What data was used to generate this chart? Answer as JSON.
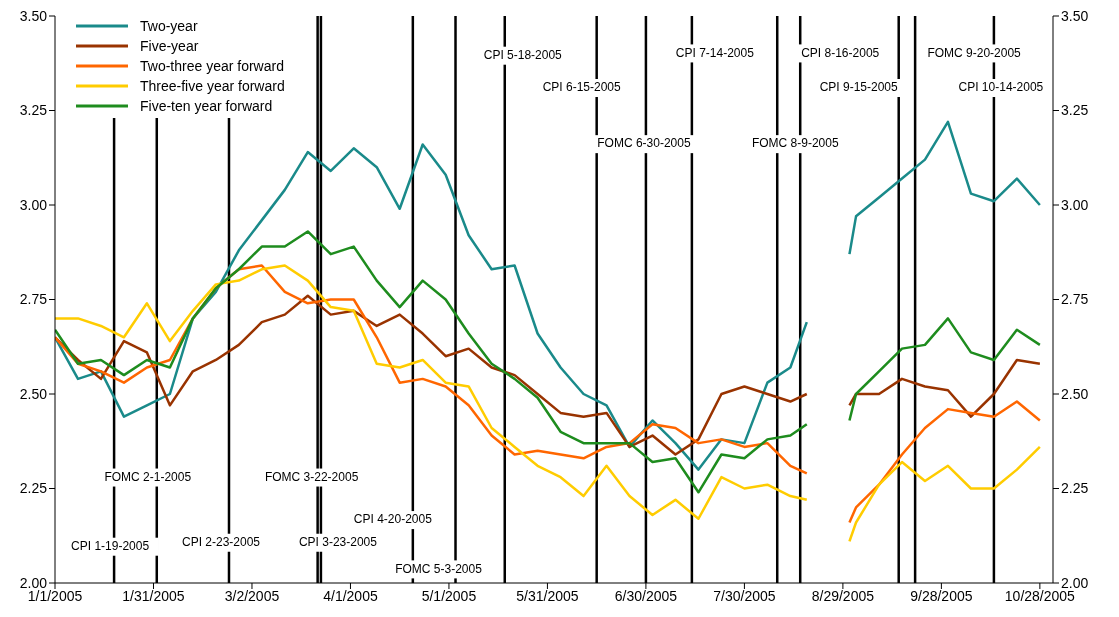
{
  "chart_data": {
    "type": "line",
    "legend": "top left",
    "x": [
      "2005-01-01",
      "2005-01-08",
      "2005-01-15",
      "2005-01-22",
      "2005-01-29",
      "2005-02-05",
      "2005-02-12",
      "2005-02-19",
      "2005-02-26",
      "2005-03-05",
      "2005-03-12",
      "2005-03-19",
      "2005-03-26",
      "2005-04-02",
      "2005-04-09",
      "2005-04-16",
      "2005-04-23",
      "2005-04-30",
      "2005-05-07",
      "2005-05-14",
      "2005-05-21",
      "2005-05-28",
      "2005-06-04",
      "2005-06-11",
      "2005-06-18",
      "2005-06-25",
      "2005-07-02",
      "2005-07-09",
      "2005-07-16",
      "2005-07-23",
      "2005-07-30",
      "2005-08-06",
      "2005-08-13",
      "2005-08-18",
      "2005-08-25",
      "2005-08-31",
      "2005-09-02",
      "2005-09-09",
      "2005-09-16",
      "2005-09-23",
      "2005-09-30",
      "2005-10-07",
      "2005-10-14",
      "2005-10-21",
      "2005-10-28"
    ],
    "series": [
      {
        "name": "Two-year",
        "color": "#1a8a8a",
        "values": [
          2.65,
          2.54,
          2.56,
          2.44,
          2.47,
          2.5,
          2.7,
          2.77,
          2.88,
          2.96,
          3.04,
          3.14,
          3.09,
          3.15,
          3.1,
          2.99,
          3.16,
          3.08,
          2.92,
          2.83,
          2.84,
          2.66,
          2.57,
          2.5,
          2.47,
          2.36,
          2.43,
          2.37,
          2.3,
          2.38,
          2.37,
          2.53,
          2.57,
          2.69,
          null,
          2.87,
          2.97,
          3.02,
          3.07,
          3.12,
          3.22,
          3.03,
          3.01,
          3.07,
          3.0
        ]
      },
      {
        "name": "Five-year",
        "color": "#993300",
        "values": [
          2.65,
          2.59,
          2.54,
          2.64,
          2.61,
          2.47,
          2.56,
          2.59,
          2.63,
          2.69,
          2.71,
          2.76,
          2.71,
          2.72,
          2.68,
          2.71,
          2.66,
          2.6,
          2.62,
          2.57,
          2.55,
          2.5,
          2.45,
          2.44,
          2.45,
          2.36,
          2.39,
          2.34,
          2.38,
          2.5,
          2.52,
          2.5,
          2.48,
          2.5,
          null,
          2.47,
          2.5,
          2.5,
          2.54,
          2.52,
          2.51,
          2.44,
          2.5,
          2.59,
          2.58
        ]
      },
      {
        "name": "Two-three year forward",
        "color": "#ff6600",
        "values": [
          2.65,
          2.58,
          2.56,
          2.53,
          2.57,
          2.59,
          2.7,
          2.78,
          2.83,
          2.84,
          2.77,
          2.74,
          2.75,
          2.75,
          2.65,
          2.53,
          2.54,
          2.52,
          2.47,
          2.39,
          2.34,
          2.35,
          2.34,
          2.33,
          2.36,
          2.37,
          2.42,
          2.41,
          2.37,
          2.38,
          2.36,
          2.37,
          2.31,
          2.29,
          null,
          2.16,
          2.2,
          2.26,
          2.34,
          2.41,
          2.46,
          2.45,
          2.44,
          2.48,
          2.43
        ]
      },
      {
        "name": "Three-five year forward",
        "color": "#ffcc00",
        "values": [
          2.7,
          2.7,
          2.68,
          2.65,
          2.74,
          2.64,
          2.72,
          2.79,
          2.8,
          2.83,
          2.84,
          2.8,
          2.73,
          2.72,
          2.58,
          2.57,
          2.59,
          2.53,
          2.52,
          2.41,
          2.36,
          2.31,
          2.28,
          2.23,
          2.31,
          2.23,
          2.18,
          2.22,
          2.17,
          2.28,
          2.25,
          2.26,
          2.23,
          2.22,
          null,
          2.11,
          2.16,
          2.26,
          2.32,
          2.27,
          2.31,
          2.25,
          2.25,
          2.3,
          2.36
        ]
      },
      {
        "name": "Five-ten year forward",
        "color": "#1e8c1e",
        "values": [
          2.67,
          2.58,
          2.59,
          2.55,
          2.59,
          2.57,
          2.7,
          2.78,
          2.83,
          2.89,
          2.89,
          2.93,
          2.87,
          2.89,
          2.8,
          2.73,
          2.8,
          2.75,
          2.66,
          2.58,
          2.54,
          2.49,
          2.4,
          2.37,
          2.37,
          2.37,
          2.32,
          2.33,
          2.24,
          2.34,
          2.33,
          2.38,
          2.39,
          2.42,
          null,
          2.43,
          2.5,
          2.56,
          2.62,
          2.63,
          2.7,
          2.61,
          2.59,
          2.67,
          2.63
        ]
      }
    ],
    "xlim": [
      "2005-01-01",
      "2005-11-01"
    ],
    "xticks": [
      {
        "value": "2005-01-01",
        "label": "1/1/2005"
      },
      {
        "value": "2005-01-31",
        "label": "1/31/2005"
      },
      {
        "value": "2005-03-02",
        "label": "3/2/2005"
      },
      {
        "value": "2005-04-01",
        "label": "4/1/2005"
      },
      {
        "value": "2005-05-01",
        "label": "5/1/2005"
      },
      {
        "value": "2005-05-31",
        "label": "5/31/2005"
      },
      {
        "value": "2005-06-30",
        "label": "6/30/2005"
      },
      {
        "value": "2005-07-30",
        "label": "7/30/2005"
      },
      {
        "value": "2005-08-29",
        "label": "8/29/2005"
      },
      {
        "value": "2005-09-28",
        "label": "9/28/2005"
      },
      {
        "value": "2005-10-28",
        "label": "10/28/2005"
      }
    ],
    "ylim": [
      2,
      3.5
    ],
    "yticks": [
      {
        "value": 2,
        "label": "2.00"
      },
      {
        "value": 2.25,
        "label": "2.25"
      },
      {
        "value": 2.5,
        "label": "2.50"
      },
      {
        "value": 2.75,
        "label": "2.75"
      },
      {
        "value": 3,
        "label": "3.00"
      },
      {
        "value": 3.25,
        "label": "3.25"
      },
      {
        "value": 3.5,
        "label": "3.50"
      }
    ],
    "y2lim": [
      2,
      3.5
    ],
    "y2ticks": [
      {
        "value": 2,
        "label": "2.00"
      },
      {
        "value": 2.25,
        "label": "2.25"
      },
      {
        "value": 2.5,
        "label": "2.50"
      },
      {
        "value": 2.75,
        "label": "2.75"
      },
      {
        "value": 3,
        "label": "3.00"
      },
      {
        "value": 3.25,
        "label": "3.25"
      },
      {
        "value": 3.5,
        "label": "3.50"
      }
    ],
    "ref_lines": [
      {
        "axis": "x",
        "value": "2005-01-19",
        "label": "CPI 1-19-2005",
        "color": "#000000"
      },
      {
        "axis": "x",
        "value": "2005-02-01",
        "label": "FOMC 2-1-2005",
        "color": "#000000"
      },
      {
        "axis": "x",
        "value": "2005-02-23",
        "label": "CPI 2-23-2005",
        "color": "#000000"
      },
      {
        "axis": "x",
        "value": "2005-03-22",
        "label": "FOMC 3-22-2005",
        "color": "#000000"
      },
      {
        "axis": "x",
        "value": "2005-03-23",
        "label": "CPI 3-23-2005",
        "color": "#000000"
      },
      {
        "axis": "x",
        "value": "2005-04-20",
        "label": "CPI 4-20-2005",
        "color": "#000000"
      },
      {
        "axis": "x",
        "value": "2005-05-03",
        "label": "FOMC 5-3-2005",
        "color": "#000000"
      },
      {
        "axis": "x",
        "value": "2005-05-18",
        "label": "CPI 5-18-2005",
        "color": "#000000"
      },
      {
        "axis": "x",
        "value": "2005-06-15",
        "label": "CPI 6-15-2005",
        "color": "#000000"
      },
      {
        "axis": "x",
        "value": "2005-06-30",
        "label": "FOMC 6-30-2005",
        "color": "#000000"
      },
      {
        "axis": "x",
        "value": "2005-07-14",
        "label": "CPI 7-14-2005",
        "color": "#000000"
      },
      {
        "axis": "x",
        "value": "2005-08-09",
        "label": "FOMC 8-9-2005",
        "color": "#000000"
      },
      {
        "axis": "x",
        "value": "2005-08-16",
        "label": "CPI 8-16-2005",
        "color": "#000000"
      },
      {
        "axis": "x",
        "value": "2005-09-15",
        "label": "CPI 9-15-2005",
        "color": "#000000"
      },
      {
        "axis": "x",
        "value": "2005-09-20",
        "label": "FOMC 9-20-2005",
        "color": "#000000"
      },
      {
        "axis": "x",
        "value": "2005-10-14",
        "label": "CPI 10-14-2005",
        "color": "#000000"
      }
    ]
  }
}
